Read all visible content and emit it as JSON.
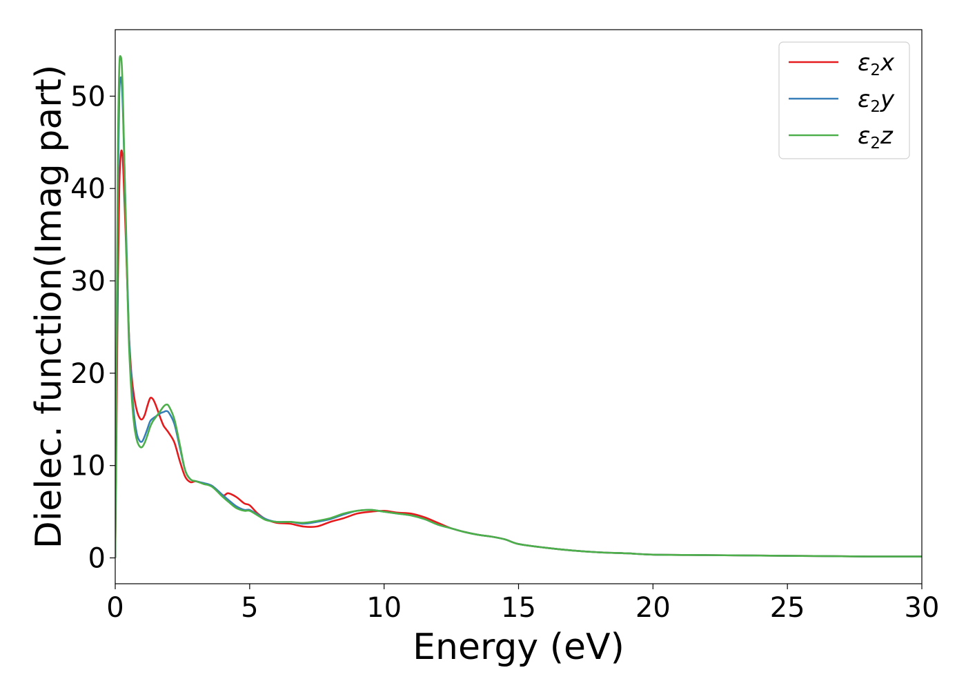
{
  "chart_data": {
    "type": "line",
    "title": "",
    "xlabel": "Energy (eV)",
    "ylabel": "Dielec. function(Imag part)",
    "xlim": [
      0,
      30
    ],
    "ylim": [
      -2.8,
      57.2
    ],
    "xticks": [
      0,
      5,
      10,
      15,
      20,
      25,
      30
    ],
    "yticks": [
      0,
      10,
      20,
      30,
      40,
      50
    ],
    "grid": false,
    "legend_position": "top-right",
    "series": [
      {
        "name": "ε2x",
        "legend_base": "ε",
        "legend_sub": "2",
        "legend_comp": "x",
        "color": "#e41a1c",
        "x": [
          0,
          0.05,
          0.1,
          0.15,
          0.2,
          0.25,
          0.3,
          0.4,
          0.5,
          0.6,
          0.7,
          0.8,
          0.9,
          1.0,
          1.1,
          1.2,
          1.3,
          1.4,
          1.5,
          1.6,
          1.7,
          1.8,
          1.9,
          2.0,
          2.2,
          2.4,
          2.6,
          2.8,
          3.0,
          3.3,
          3.6,
          4.0,
          4.2,
          4.5,
          4.8,
          5.0,
          5.3,
          5.6,
          6.0,
          6.5,
          7.0,
          7.5,
          8.0,
          8.5,
          9.0,
          9.5,
          10.0,
          10.5,
          11.0,
          11.5,
          12.0,
          12.5,
          13.0,
          13.5,
          14.0,
          14.5,
          15.0,
          16.0,
          17.0,
          18.0,
          19.0,
          20.0,
          22.0,
          24.0,
          26.0,
          28.0,
          30.0
        ],
        "values": [
          0,
          15,
          30,
          40,
          43.5,
          44,
          42,
          34,
          25,
          20,
          17.5,
          16,
          15.2,
          15,
          15.5,
          16.5,
          17.3,
          17.2,
          16.6,
          15.8,
          15.0,
          14.3,
          13.9,
          13.5,
          12.5,
          10.5,
          8.8,
          8.2,
          8.3,
          8.0,
          7.8,
          6.8,
          7.0,
          6.6,
          5.9,
          5.7,
          4.8,
          4.2,
          3.8,
          3.7,
          3.4,
          3.4,
          3.9,
          4.3,
          4.8,
          5.0,
          5.1,
          4.9,
          4.8,
          4.4,
          3.8,
          3.2,
          2.8,
          2.5,
          2.3,
          2.0,
          1.5,
          1.1,
          0.8,
          0.6,
          0.5,
          0.35,
          0.3,
          0.25,
          0.2,
          0.15,
          0.15
        ]
      },
      {
        "name": "ε2y",
        "legend_base": "ε",
        "legend_sub": "2",
        "legend_comp": "y",
        "color": "#377eb8",
        "x": [
          0,
          0.05,
          0.1,
          0.15,
          0.2,
          0.25,
          0.3,
          0.4,
          0.5,
          0.6,
          0.7,
          0.8,
          0.9,
          1.0,
          1.1,
          1.2,
          1.3,
          1.4,
          1.5,
          1.6,
          1.7,
          1.8,
          1.9,
          2.0,
          2.2,
          2.4,
          2.6,
          2.8,
          3.0,
          3.3,
          3.6,
          4.0,
          4.2,
          4.5,
          4.8,
          5.0,
          5.3,
          5.6,
          6.0,
          6.5,
          7.0,
          7.5,
          8.0,
          8.5,
          9.0,
          9.5,
          10.0,
          10.5,
          11.0,
          11.5,
          12.0,
          12.5,
          13.0,
          13.5,
          14.0,
          14.5,
          15.0,
          16.0,
          17.0,
          18.0,
          19.0,
          20.0,
          22.0,
          24.0,
          26.0,
          28.0,
          30.0
        ],
        "values": [
          0,
          20,
          40,
          50,
          52,
          51,
          47,
          36,
          25,
          19,
          15.5,
          13.5,
          12.7,
          12.6,
          13.2,
          14.0,
          14.8,
          15.1,
          15.3,
          15.5,
          15.7,
          15.8,
          15.9,
          15.7,
          14.5,
          12.0,
          9.5,
          8.5,
          8.3,
          8.1,
          7.8,
          6.8,
          6.3,
          5.6,
          5.2,
          5.2,
          4.7,
          4.2,
          3.9,
          3.9,
          3.7,
          3.9,
          4.2,
          4.7,
          5.1,
          5.2,
          5.0,
          4.8,
          4.6,
          4.2,
          3.6,
          3.2,
          2.8,
          2.5,
          2.3,
          2.0,
          1.5,
          1.1,
          0.8,
          0.6,
          0.5,
          0.35,
          0.3,
          0.25,
          0.2,
          0.15,
          0.15
        ]
      },
      {
        "name": "ε2z",
        "legend_base": "ε",
        "legend_sub": "2",
        "legend_comp": "z",
        "color": "#4daf4a",
        "x": [
          0,
          0.05,
          0.1,
          0.15,
          0.2,
          0.25,
          0.3,
          0.4,
          0.5,
          0.6,
          0.7,
          0.8,
          0.9,
          1.0,
          1.1,
          1.2,
          1.3,
          1.4,
          1.5,
          1.6,
          1.7,
          1.8,
          1.9,
          2.0,
          2.2,
          2.4,
          2.6,
          2.8,
          3.0,
          3.3,
          3.6,
          4.0,
          4.2,
          4.5,
          4.8,
          5.0,
          5.3,
          5.6,
          6.0,
          6.5,
          7.0,
          7.5,
          8.0,
          8.5,
          9.0,
          9.5,
          10.0,
          10.5,
          11.0,
          11.5,
          12.0,
          12.5,
          13.0,
          13.5,
          14.0,
          14.5,
          15.0,
          16.0,
          17.0,
          18.0,
          19.0,
          20.0,
          22.0,
          24.0,
          26.0,
          28.0,
          30.0
        ],
        "values": [
          0,
          22,
          44,
          53,
          54.3,
          53,
          48,
          35,
          24,
          18,
          14.5,
          12.8,
          12.1,
          12.0,
          12.5,
          13.3,
          14.2,
          14.8,
          15.2,
          15.6,
          16.0,
          16.4,
          16.6,
          16.4,
          15.0,
          12.3,
          9.5,
          8.5,
          8.3,
          8.0,
          7.7,
          6.6,
          6.1,
          5.4,
          5.1,
          5.1,
          4.6,
          4.1,
          3.9,
          3.9,
          3.8,
          4.0,
          4.3,
          4.8,
          5.1,
          5.2,
          5.0,
          4.8,
          4.6,
          4.2,
          3.6,
          3.2,
          2.8,
          2.5,
          2.3,
          2.0,
          1.5,
          1.1,
          0.8,
          0.6,
          0.5,
          0.35,
          0.3,
          0.25,
          0.2,
          0.15,
          0.15
        ]
      }
    ]
  }
}
